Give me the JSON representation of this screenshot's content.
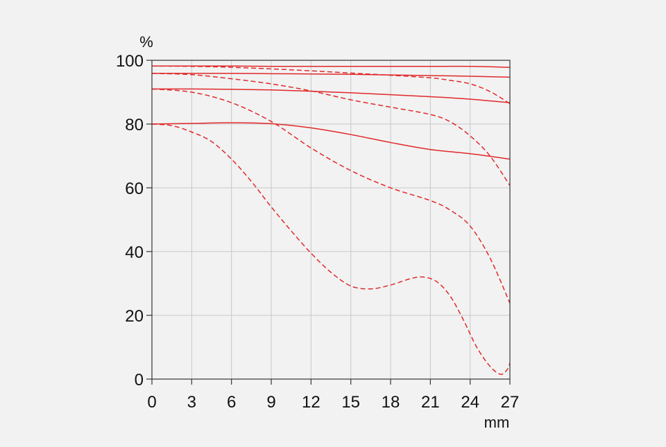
{
  "chart_data": {
    "type": "line",
    "xlabel": "mm",
    "ylabel": "%",
    "xlim": [
      0,
      27
    ],
    "ylim": [
      0,
      100
    ],
    "x_ticks": [
      "0",
      "3",
      "6",
      "9",
      "12",
      "15",
      "18",
      "21",
      "24",
      "27"
    ],
    "y_ticks": [
      "0",
      "20",
      "40",
      "60",
      "80",
      "100"
    ],
    "grid": true,
    "colors": {
      "line": "#e0282a",
      "grid": "#c8c8c8",
      "axis": "#333333",
      "background": "#f2f2f2"
    },
    "series": [
      {
        "style": "solid",
        "x": [
          0,
          3,
          6,
          9,
          12,
          15,
          18,
          21,
          24,
          27
        ],
        "values": [
          98.2,
          98.2,
          98.2,
          98.1,
          98.1,
          98.1,
          98.1,
          98.1,
          98.1,
          97.8
        ]
      },
      {
        "style": "solid",
        "x": [
          0,
          3,
          6,
          9,
          12,
          15,
          18,
          21,
          24,
          27
        ],
        "values": [
          95.9,
          95.9,
          95.9,
          95.8,
          95.7,
          95.6,
          95.4,
          95.2,
          95.0,
          94.7
        ]
      },
      {
        "style": "solid",
        "x": [
          0,
          3,
          6,
          9,
          12,
          15,
          18,
          21,
          24,
          27
        ],
        "values": [
          91.0,
          91.0,
          90.9,
          90.7,
          90.3,
          89.8,
          89.2,
          88.6,
          87.8,
          86.7
        ]
      },
      {
        "style": "solid",
        "x": [
          0,
          3,
          6,
          9,
          12,
          15,
          18,
          21,
          24,
          27
        ],
        "values": [
          80.0,
          80.2,
          80.4,
          80.1,
          78.8,
          76.7,
          74.2,
          72.0,
          70.7,
          69.0
        ]
      },
      {
        "style": "dashed",
        "x": [
          0,
          3,
          6,
          9,
          12,
          15,
          18,
          21,
          22.5,
          24,
          25.5,
          27
        ],
        "values": [
          98.2,
          98.1,
          97.8,
          97.3,
          96.7,
          96.0,
          95.3,
          94.5,
          93.7,
          92.6,
          90.2,
          86.4
        ]
      },
      {
        "style": "dashed",
        "x": [
          0,
          3,
          6,
          9,
          12,
          15,
          18,
          21,
          22.5,
          24,
          25.5,
          27
        ],
        "values": [
          95.9,
          95.5,
          94.2,
          92.6,
          90.4,
          87.6,
          85.3,
          83.0,
          80.7,
          76.3,
          70.0,
          60.7
        ]
      },
      {
        "style": "dashed",
        "x": [
          0,
          3,
          6,
          9,
          12,
          15,
          18,
          21,
          22.5,
          24,
          25.5,
          27
        ],
        "values": [
          91.0,
          90.0,
          86.7,
          80.8,
          72.5,
          65.4,
          60.0,
          56.0,
          53.0,
          48.0,
          38.0,
          23.8
        ]
      },
      {
        "style": "dashed",
        "x": [
          0,
          1.5,
          3,
          4.5,
          6,
          7.5,
          9,
          10.5,
          12,
          13.5,
          15,
          16.5,
          18,
          19.5,
          20.5,
          21.5,
          22.5,
          23.5,
          24.5,
          25.5,
          26.3,
          26.8,
          27
        ],
        "values": [
          80.0,
          79.5,
          77.5,
          74.5,
          69.0,
          62.0,
          54.0,
          46.5,
          39.5,
          33.5,
          29.2,
          28.3,
          29.5,
          31.5,
          32.0,
          30.5,
          26.0,
          18.5,
          10.0,
          4.0,
          1.5,
          3.0,
          5.0
        ]
      }
    ]
  }
}
